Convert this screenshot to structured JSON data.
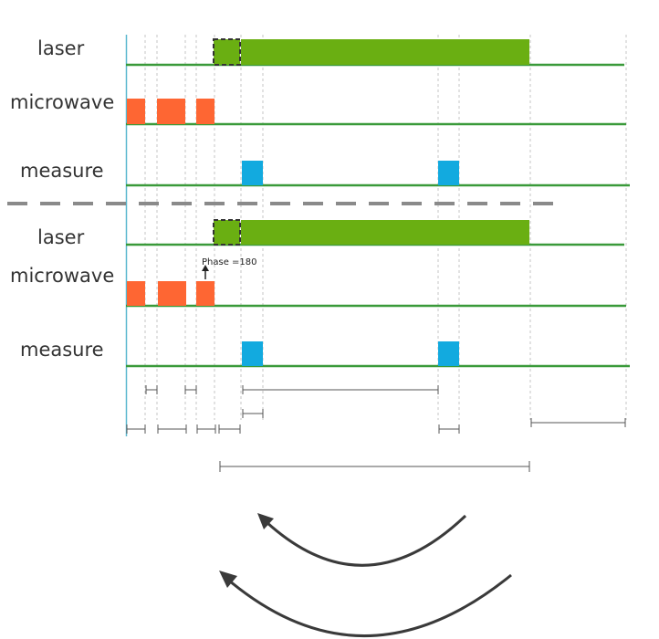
{
  "panels": [
    {
      "rows": [
        {
          "label": "laser"
        },
        {
          "label": "microwave"
        },
        {
          "label": "measure"
        }
      ]
    },
    {
      "rows": [
        {
          "label": "laser"
        },
        {
          "label": "microwave"
        },
        {
          "label": "measure"
        }
      ],
      "annotation": "Phase =180"
    }
  ],
  "colors": {
    "laser": "#6aaf12",
    "microwave": "#fe6633",
    "measure": "#12aadf",
    "baseline": "#3a9a3a",
    "separator": "#8a8a8a",
    "guide": "#c6c6c6",
    "axis": "#5ab8cf",
    "bracket": "#555555",
    "arrow": "#3a3a3a"
  }
}
